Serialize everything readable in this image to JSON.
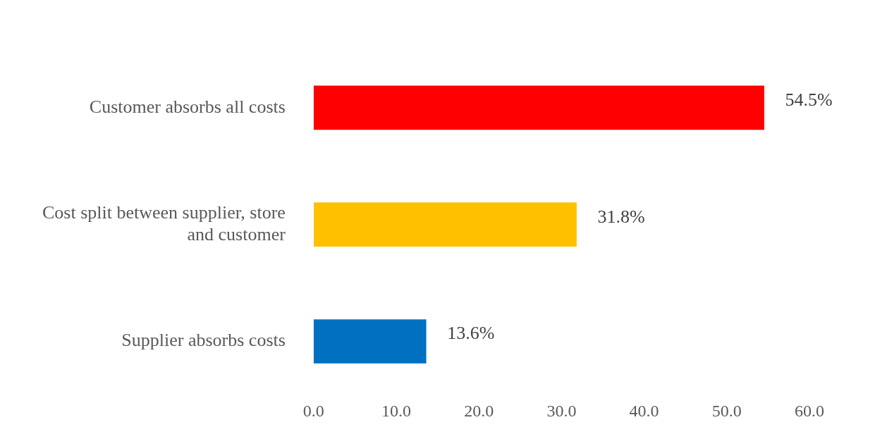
{
  "chart_data": {
    "type": "bar",
    "orientation": "horizontal",
    "categories": [
      "Customer absorbs all costs",
      "Cost split between supplier, store and customer",
      "Supplier absorbs costs"
    ],
    "values": [
      54.5,
      31.8,
      13.6
    ],
    "colors": [
      "#ff0000",
      "#ffc000",
      "#0070c0"
    ],
    "value_labels": [
      "54.5%",
      "31.8%",
      "13.6%"
    ],
    "xlim": [
      0,
      60
    ],
    "xticks": [
      {
        "value": 0,
        "label": "0.0"
      },
      {
        "value": 10,
        "label": "10.0"
      },
      {
        "value": 20,
        "label": "20.0"
      },
      {
        "value": 30,
        "label": "30.0"
      },
      {
        "value": 40,
        "label": "40.0"
      },
      {
        "value": 50,
        "label": "50.0"
      },
      {
        "value": 60,
        "label": "60.0"
      }
    ],
    "grid": false,
    "legend": false
  }
}
